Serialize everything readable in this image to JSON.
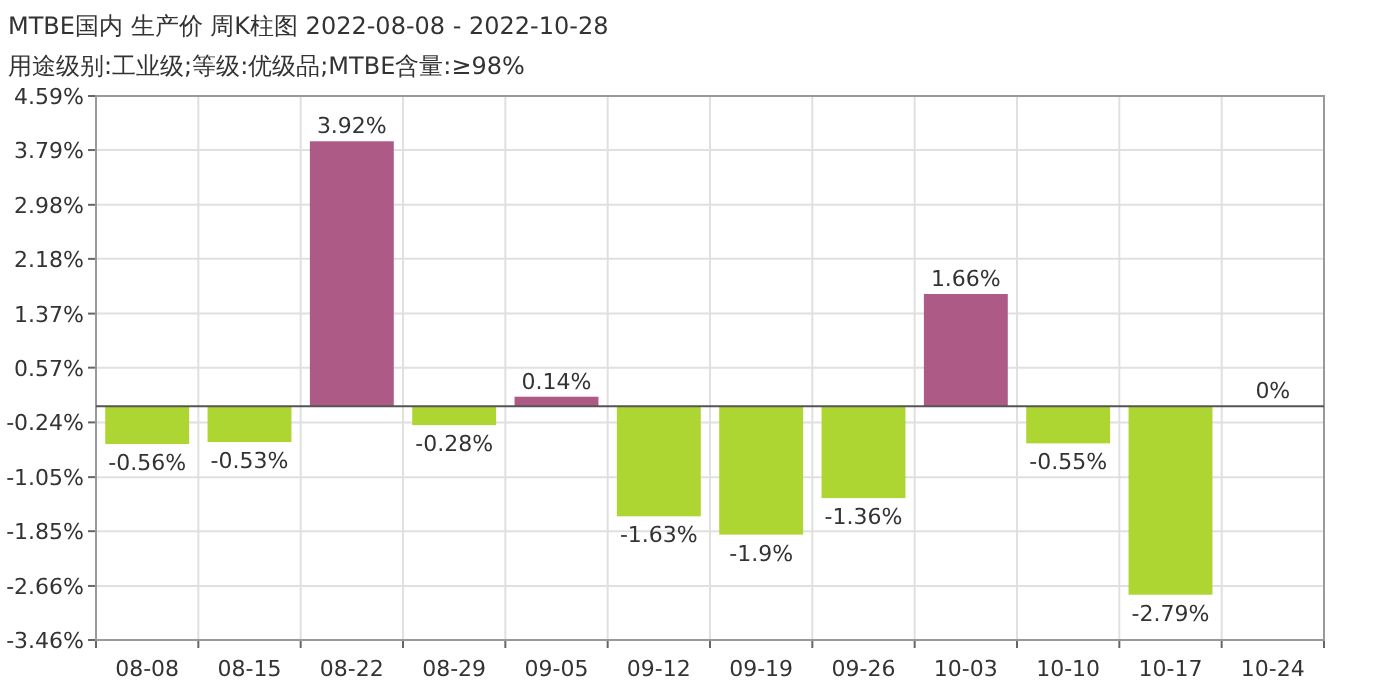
{
  "chart_data": {
    "type": "bar",
    "title": "MTBE国内 生产价 周K柱图 2022-08-08 - 2022-10-28",
    "subtitle": "用途级别:工业级;等级:优级品;MTBE含量:≥98%",
    "categories": [
      "08-08",
      "08-15",
      "08-22",
      "08-29",
      "09-05",
      "09-12",
      "09-19",
      "09-26",
      "10-03",
      "10-10",
      "10-17",
      "10-24"
    ],
    "values": [
      -0.56,
      -0.53,
      3.92,
      -0.28,
      0.14,
      -1.63,
      -1.9,
      -1.36,
      1.66,
      -0.55,
      -2.79,
      0
    ],
    "value_labels": [
      "-0.56%",
      "-0.53%",
      "3.92%",
      "-0.28%",
      "0.14%",
      "-1.63%",
      "-1.9%",
      "-1.36%",
      "1.66%",
      "-0.55%",
      "-2.79%",
      "0%"
    ],
    "colors": [
      "#add633",
      "#add633",
      "#ad5a87",
      "#add633",
      "#ad5a87",
      "#add633",
      "#add633",
      "#add633",
      "#ad5a87",
      "#add633",
      "#add633",
      "#add633"
    ],
    "ylim": [
      -3.46,
      4.59
    ],
    "yticks": [
      {
        "value": 4.59,
        "label": "4.59%"
      },
      {
        "value": 3.79,
        "label": "3.79%"
      },
      {
        "value": 2.98,
        "label": "2.98%"
      },
      {
        "value": 2.18,
        "label": "2.18%"
      },
      {
        "value": 1.37,
        "label": "1.37%"
      },
      {
        "value": 0.57,
        "label": "0.57%"
      },
      {
        "value": -0.24,
        "label": "-0.24%"
      },
      {
        "value": -1.05,
        "label": "-1.05%"
      },
      {
        "value": -1.85,
        "label": "-1.85%"
      },
      {
        "value": -2.66,
        "label": "-2.66%"
      },
      {
        "value": -3.46,
        "label": "-3.46%"
      }
    ],
    "grid": true
  }
}
